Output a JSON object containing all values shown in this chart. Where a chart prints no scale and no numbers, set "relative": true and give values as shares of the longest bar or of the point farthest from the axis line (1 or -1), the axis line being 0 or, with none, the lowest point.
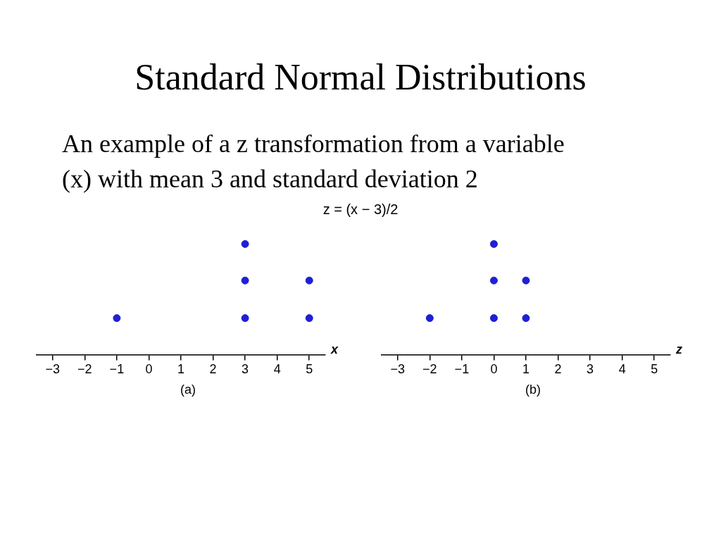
{
  "chart_data": [
    {
      "type": "scatter",
      "title": "Standard Normal Distributions",
      "subtitle": "An example of a z transformation from a variable (x) with mean 3 and standard deviation 2",
      "xlabel": "x",
      "annotations": [
        "(a)",
        "z = (x − 3)/2"
      ],
      "relative": true,
      "x": [
        -1,
        3,
        3,
        3,
        5,
        5
      ],
      "values": [
        0.33,
        0.33,
        0.67,
        1,
        0.33,
        0.67
      ],
      "color": "#1f1fd6",
      "xlim": [
        -3.5,
        5.5
      ],
      "xticks": [
        -3,
        -2,
        -1,
        0,
        1,
        2,
        3,
        4,
        5
      ],
      "marker": "circle",
      "grid": false,
      "legend": false
    },
    {
      "type": "scatter",
      "xlabel": "z",
      "annotations": [
        "(b)"
      ],
      "relative": true,
      "x": [
        -2,
        0,
        0,
        0,
        1,
        1
      ],
      "values": [
        0.33,
        0.33,
        0.67,
        1,
        0.33,
        0.67
      ],
      "color": "#1f1fd6",
      "xlim": [
        -3.5,
        5.5
      ],
      "xticks": [
        -3,
        -2,
        -1,
        0,
        1,
        2,
        3,
        4,
        5
      ],
      "marker": "circle",
      "grid": false,
      "legend": false
    }
  ]
}
